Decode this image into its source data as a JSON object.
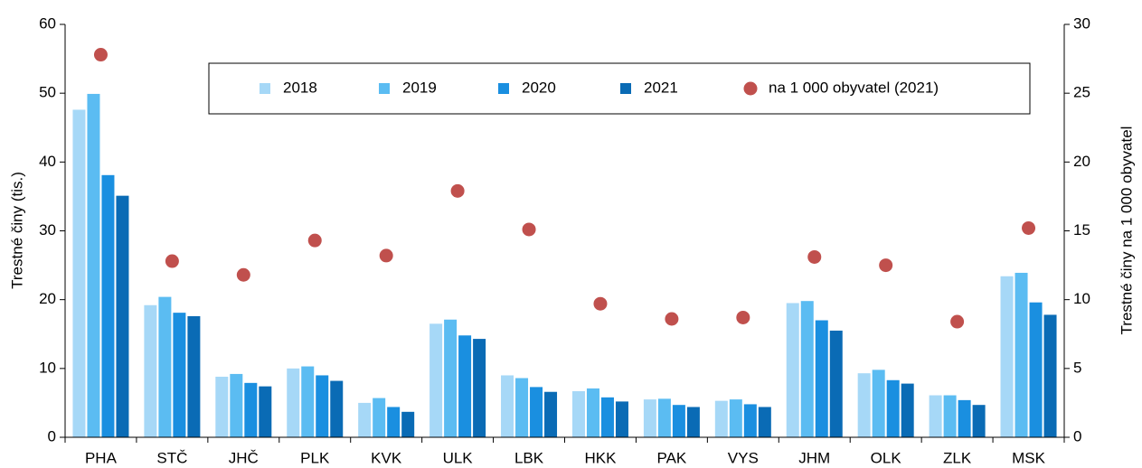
{
  "chart_data": {
    "type": "bar",
    "y_label": "Trestné činy (tis.)",
    "y2_label": "Trestné činy na 1 000 obyvatel",
    "categories": [
      "PHA",
      "STČ",
      "JHČ",
      "PLK",
      "KVK",
      "ULK",
      "LBK",
      "HKK",
      "PAK",
      "VYS",
      "JHM",
      "OLK",
      "ZLK",
      "MSK"
    ],
    "series": [
      {
        "name": "2018",
        "color": "#a6d8f7",
        "values": [
          47.6,
          19.2,
          8.8,
          10.0,
          5.0,
          16.5,
          9.0,
          6.7,
          5.5,
          5.3,
          19.5,
          9.3,
          6.1,
          23.4
        ]
      },
      {
        "name": "2019",
        "color": "#5bbcf2",
        "values": [
          49.9,
          20.4,
          9.2,
          10.3,
          5.7,
          17.1,
          8.6,
          7.1,
          5.6,
          5.5,
          19.8,
          9.8,
          6.1,
          23.9
        ]
      },
      {
        "name": "2020",
        "color": "#1a8fe0",
        "values": [
          38.1,
          18.1,
          7.9,
          9.0,
          4.4,
          14.8,
          7.3,
          5.8,
          4.7,
          4.8,
          17.0,
          8.3,
          5.4,
          19.6
        ]
      },
      {
        "name": "2021",
        "color": "#0a6bb5",
        "values": [
          35.1,
          17.6,
          7.4,
          8.2,
          3.7,
          14.3,
          6.6,
          5.2,
          4.4,
          4.4,
          15.5,
          7.8,
          4.7,
          17.8
        ]
      },
      {
        "name": "na 1 000 obyvatel (2021)",
        "color": "#c0504d",
        "marker": "scatter",
        "axis": "y2",
        "values": [
          27.8,
          12.8,
          11.8,
          14.3,
          13.2,
          17.9,
          15.1,
          9.7,
          8.6,
          8.7,
          13.1,
          12.5,
          8.4,
          15.2
        ]
      }
    ],
    "ylim": [
      0,
      60
    ],
    "yticks": [
      0,
      10,
      20,
      30,
      40,
      50,
      60
    ],
    "y2lim": [
      0,
      30
    ],
    "y2ticks": [
      0,
      5,
      10,
      15,
      20,
      25,
      30
    ]
  }
}
